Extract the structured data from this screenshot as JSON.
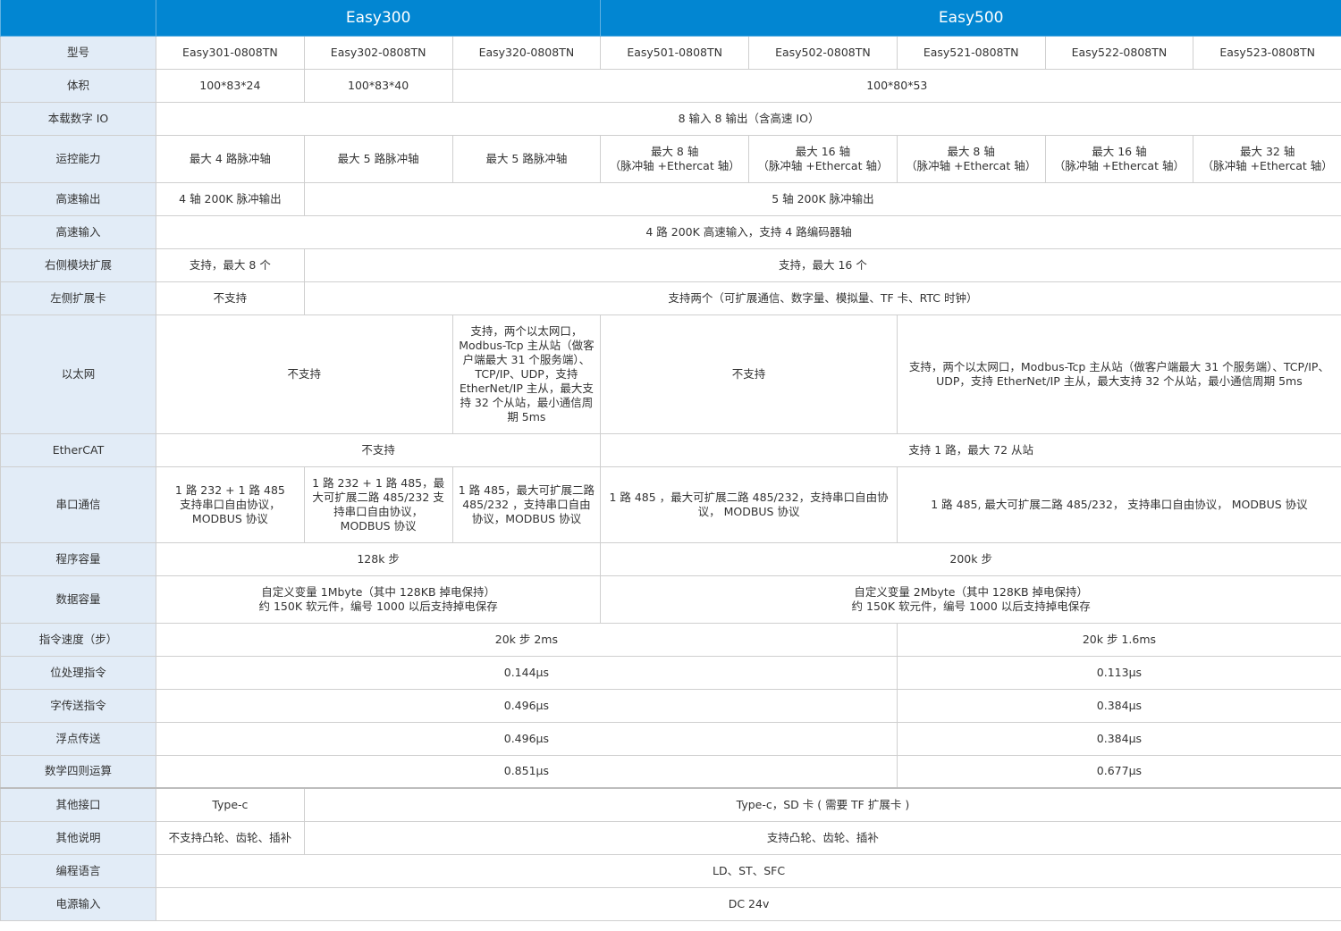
{
  "colors": {
    "header_bg": "#0286d2",
    "label_bg": "#e2ecf7"
  },
  "rows": [
    {
      "h": 40,
      "header": true,
      "label": "",
      "cells": [
        {
          "t": "Easy300",
          "s": 3
        },
        {
          "t": "Easy500",
          "s": 5
        }
      ]
    },
    {
      "h": 37,
      "label": "型号",
      "cells": [
        {
          "t": "Easy301-0808TN"
        },
        {
          "t": "Easy302-0808TN"
        },
        {
          "t": "Easy320-0808TN"
        },
        {
          "t": "Easy501-0808TN"
        },
        {
          "t": "Easy502-0808TN"
        },
        {
          "t": "Easy521-0808TN"
        },
        {
          "t": "Easy522-0808TN"
        },
        {
          "t": "Easy523-0808TN"
        }
      ]
    },
    {
      "h": 37,
      "label": "体积",
      "cells": [
        {
          "t": "100*83*24"
        },
        {
          "t": "100*83*40"
        },
        {
          "t": "100*80*53",
          "s": 6
        }
      ]
    },
    {
      "h": 37,
      "label": "本载数字 IO",
      "cells": [
        {
          "t": "8 输入 8 输出（含高速 IO）",
          "s": 8
        }
      ]
    },
    {
      "h": 53,
      "label": "运控能力",
      "cells": [
        {
          "t": "最大 4 路脉冲轴"
        },
        {
          "t": "最大 5 路脉冲轴"
        },
        {
          "t": "最大 5 路脉冲轴"
        },
        {
          "t": "最大 8 轴\n（脉冲轴 +Ethercat 轴）"
        },
        {
          "t": "最大 16 轴\n（脉冲轴 +Ethercat 轴）"
        },
        {
          "t": "最大 8 轴\n（脉冲轴 +Ethercat 轴）"
        },
        {
          "t": "最大 16 轴\n（脉冲轴 +Ethercat 轴）"
        },
        {
          "t": "最大 32 轴\n（脉冲轴 +Ethercat 轴）"
        }
      ]
    },
    {
      "h": 37,
      "label": "高速输出",
      "cells": [
        {
          "t": "4 轴 200K 脉冲输出"
        },
        {
          "t": "5 轴 200K 脉冲输出",
          "s": 7
        }
      ]
    },
    {
      "h": 37,
      "label": "高速输入",
      "cells": [
        {
          "t": "4 路 200K 高速输入，支持 4 路编码器轴",
          "s": 8
        }
      ]
    },
    {
      "h": 37,
      "label": "右侧模块扩展",
      "cells": [
        {
          "t": "支持，最大 8 个"
        },
        {
          "t": "支持，最大 16 个",
          "s": 7
        }
      ]
    },
    {
      "h": 37,
      "label": "左侧扩展卡",
      "cells": [
        {
          "t": "不支持"
        },
        {
          "t": "支持两个（可扩展通信、数字量、模拟量、TF 卡、RTC 时钟）",
          "s": 7
        }
      ]
    },
    {
      "h": 133,
      "label": "以太网",
      "cells": [
        {
          "t": "不支持",
          "s": 2
        },
        {
          "t": "支持，两个以太网口，Modbus-Tcp 主从站（做客户端最大 31 个服务端）、TCP/IP、UDP，支持 EtherNet/IP 主从，最大支持 32 个从站，最小通信周期 5ms"
        },
        {
          "t": "不支持",
          "s": 2
        },
        {
          "t": "支持，两个以太网口，Modbus-Tcp 主从站（做客户端最大 31 个服务端）、TCP/IP、UDP，支持 EtherNet/IP 主从，最大支持 32 个从站，最小通信周期 5ms",
          "s": 3
        }
      ]
    },
    {
      "h": 37,
      "label": "EtherCAT",
      "cells": [
        {
          "t": "不支持",
          "s": 3
        },
        {
          "t": "支持 1 路，最大 72 从站",
          "s": 5
        }
      ]
    },
    {
      "h": 85,
      "label": "串口通信",
      "cells": [
        {
          "t": "1 路 232 + 1 路 485\n支持串口自由协议，\nMODBUS 协议"
        },
        {
          "t": "1 路 232 + 1 路 485，最大可扩展二路 485/232 支持串口自由协议，MODBUS 协议"
        },
        {
          "t": "1 路 485，最大可扩展二路 485/232 ，支持串口自由协议，MODBUS 协议"
        },
        {
          "t": "1 路 485 ，最大可扩展二路 485/232，支持串口自由协议， MODBUS 协议",
          "s": 2
        },
        {
          "t": "1 路 485, 最大可扩展二路 485/232， 支持串口自由协议， MODBUS 协议",
          "s": 3
        }
      ]
    },
    {
      "h": 37,
      "label": "程序容量",
      "cells": [
        {
          "t": "128k 步",
          "s": 3
        },
        {
          "t": "200k 步",
          "s": 5
        }
      ]
    },
    {
      "h": 53,
      "label": "数据容量",
      "cells": [
        {
          "t": "自定义变量 1Mbyte（其中 128KB 掉电保持）\n约 150K 软元件，编号 1000 以后支持掉电保存",
          "s": 3
        },
        {
          "t": "自定义变量 2Mbyte（其中 128KB 掉电保持）\n约 150K 软元件，编号 1000 以后支持掉电保存",
          "s": 5
        }
      ]
    },
    {
      "h": 37,
      "label": "指令速度（步）",
      "cells": [
        {
          "t": "20k 步 2ms",
          "s": 5
        },
        {
          "t": "20k 步 1.6ms",
          "s": 3
        }
      ]
    },
    {
      "h": 37,
      "label": "位处理指令",
      "cells": [
        {
          "t": "0.144μs",
          "s": 5
        },
        {
          "t": "0.113μs",
          "s": 3
        }
      ]
    },
    {
      "h": 37,
      "label": "字传送指令",
      "cells": [
        {
          "t": "0.496μs",
          "s": 5
        },
        {
          "t": "0.384μs",
          "s": 3
        }
      ]
    },
    {
      "h": 37,
      "label": "浮点传送",
      "cells": [
        {
          "t": "0.496μs",
          "s": 5
        },
        {
          "t": "0.384μs",
          "s": 3
        }
      ]
    },
    {
      "h": 37,
      "label": "数学四则运算",
      "cells": [
        {
          "t": "0.851μs",
          "s": 5
        },
        {
          "t": "0.677μs",
          "s": 3
        }
      ]
    },
    {
      "h": 37,
      "label": "其他接口",
      "thick": true,
      "cells": [
        {
          "t": "Type-c"
        },
        {
          "t": "Type-c，SD 卡 ( 需要 TF 扩展卡 )",
          "s": 7
        }
      ]
    },
    {
      "h": 37,
      "label": "其他说明",
      "cells": [
        {
          "t": "不支持凸轮、齿轮、插补"
        },
        {
          "t": "支持凸轮、齿轮、插补",
          "s": 7
        }
      ]
    },
    {
      "h": 37,
      "label": "编程语言",
      "cells": [
        {
          "t": "LD、ST、SFC",
          "s": 8
        }
      ]
    },
    {
      "h": 37,
      "label": "电源输入",
      "cells": [
        {
          "t": "DC 24v",
          "s": 8
        }
      ]
    }
  ]
}
